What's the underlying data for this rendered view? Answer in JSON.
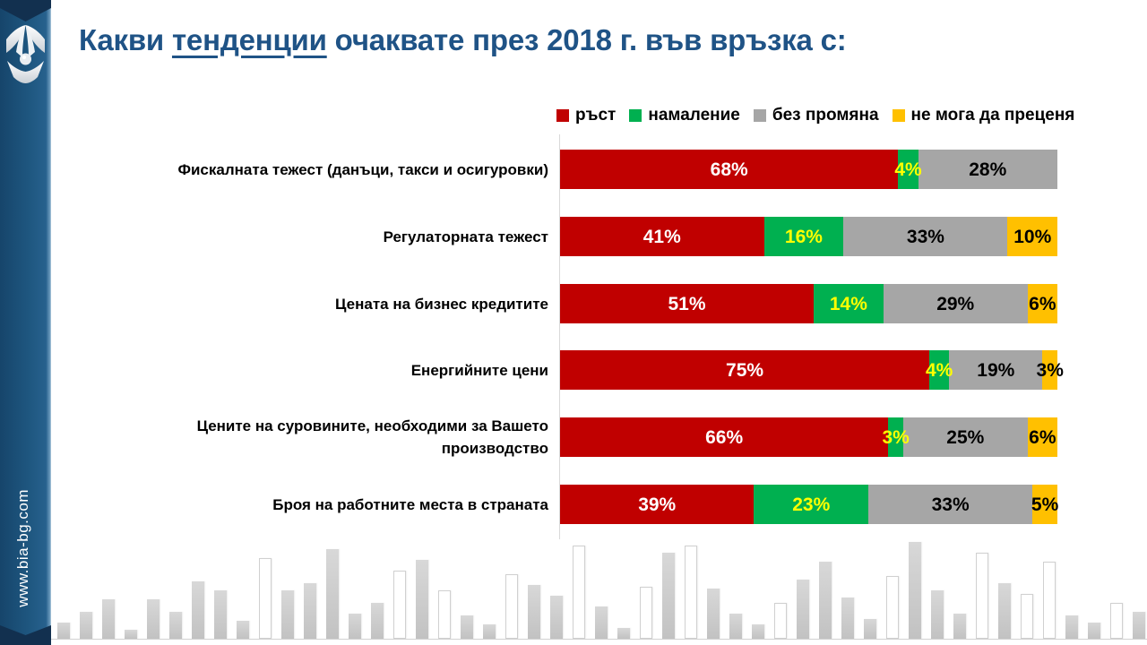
{
  "slide": {
    "title": {
      "prefix": "Какви ",
      "underlined": "тенденции",
      "suffix": " очаквате през 2018 г. във връзка с:",
      "color": "#1F5386"
    },
    "sidebar": {
      "url": "www.bia-bg.com",
      "logo": "bia-logo",
      "background_color": "#1E567F",
      "ribbon_color": "#12304F"
    }
  },
  "chart_data": {
    "type": "bar",
    "orientation": "horizontal",
    "stacked": true,
    "title": "Какви тенденции очаквате през 2018 г. във връзка с:",
    "value_suffix": "%",
    "xlim": [
      0,
      100
    ],
    "legend_position": "top",
    "grid": false,
    "categories": [
      "Фискалната тежест (данъци, такси и осигуровки)",
      "Регулаторната тежест",
      "Цената на бизнес кредитите",
      "Енергийните цени",
      "Цените на суровините, необходими за Вашето производство",
      "Броя на работните места в страната"
    ],
    "series": [
      {
        "name": "ръст",
        "color": "#C00000",
        "label_color": "#FFFFFF",
        "values": [
          68,
          41,
          51,
          75,
          66,
          39
        ]
      },
      {
        "name": "намаление",
        "color": "#00B050",
        "label_color": "#FFFF00",
        "values": [
          4,
          16,
          14,
          4,
          3,
          23
        ]
      },
      {
        "name": "без промяна",
        "color": "#A6A6A6",
        "label_color": "#000000",
        "values": [
          28,
          33,
          29,
          19,
          25,
          33
        ]
      },
      {
        "name": "не мога да преценя",
        "color": "#FFC000",
        "label_color": "#000000",
        "values": [
          0,
          10,
          6,
          3,
          6,
          5
        ]
      }
    ]
  },
  "decoration": {
    "skyline": {
      "fill_color": "#C9C9C9",
      "outline_color": "#D0D0D0",
      "heights": [
        18,
        30,
        44,
        10,
        44,
        30,
        64,
        54,
        20,
        90,
        54,
        62,
        100,
        28,
        40,
        76,
        88,
        54,
        26,
        16,
        72,
        60,
        48,
        104,
        36,
        12,
        58,
        96,
        104,
        56,
        28,
        16,
        40,
        66,
        86,
        46,
        22,
        70,
        108,
        54,
        28,
        96,
        62,
        50,
        86,
        26,
        18,
        40,
        30
      ],
      "styles": [
        "f",
        "f",
        "f",
        "f",
        "f",
        "f",
        "f",
        "f",
        "f",
        "o",
        "f",
        "f",
        "f",
        "f",
        "f",
        "o",
        "f",
        "o",
        "f",
        "f",
        "o",
        "f",
        "f",
        "o",
        "f",
        "f",
        "o",
        "f",
        "o",
        "f",
        "f",
        "f",
        "o",
        "f",
        "f",
        "f",
        "f",
        "o",
        "f",
        "f",
        "f",
        "o",
        "f",
        "o",
        "o",
        "f",
        "f",
        "o",
        "f"
      ]
    }
  }
}
